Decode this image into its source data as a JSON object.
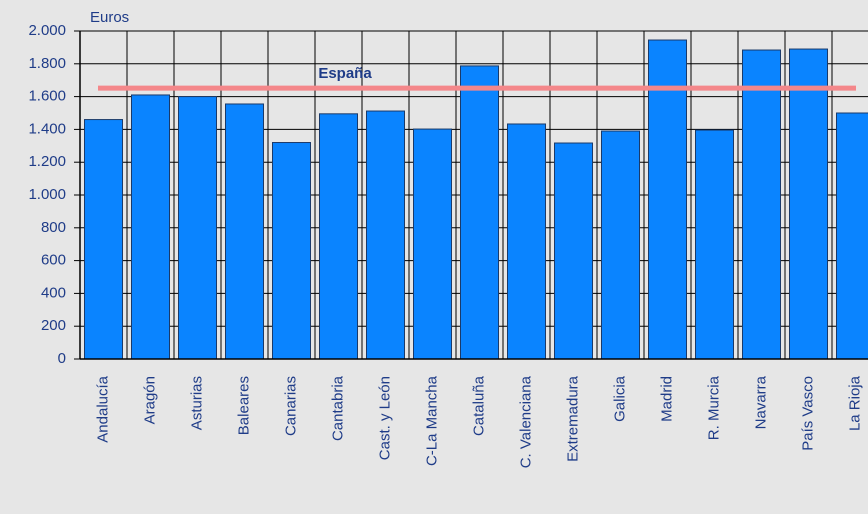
{
  "chart_data": {
    "type": "bar",
    "y_axis_label": "Euros",
    "categories": [
      "Andalucía",
      "Aragón",
      "Asturias",
      "Baleares",
      "Canarias",
      "Cantabria",
      "Cast. y León",
      "C-La Mancha",
      "Cataluña",
      "C. Valenciana",
      "Extremadura",
      "Galicia",
      "Madrid",
      "R. Murcia",
      "Navarra",
      "País Vasco",
      "La Rioja"
    ],
    "values": [
      1460,
      1610,
      1600,
      1555,
      1320,
      1495,
      1512,
      1402,
      1787,
      1433,
      1317,
      1390,
      1945,
      1396,
      1884,
      1890,
      1500
    ],
    "color": "#0a84ff",
    "ylim": [
      0,
      2000
    ],
    "yticks": [
      0,
      200,
      400,
      600,
      800,
      {
        "value": 1000,
        "label": "1.000"
      },
      {
        "value": 1200,
        "label": "1.200"
      },
      {
        "value": 1400,
        "label": "1.400"
      },
      {
        "value": 1600,
        "label": "1.600"
      },
      {
        "value": 1800,
        "label": "1.800"
      },
      {
        "value": 2000,
        "label": "2.000"
      }
    ],
    "grid": true,
    "reference_line": {
      "label": "España",
      "value": 1652,
      "color": "#f4878a"
    }
  }
}
